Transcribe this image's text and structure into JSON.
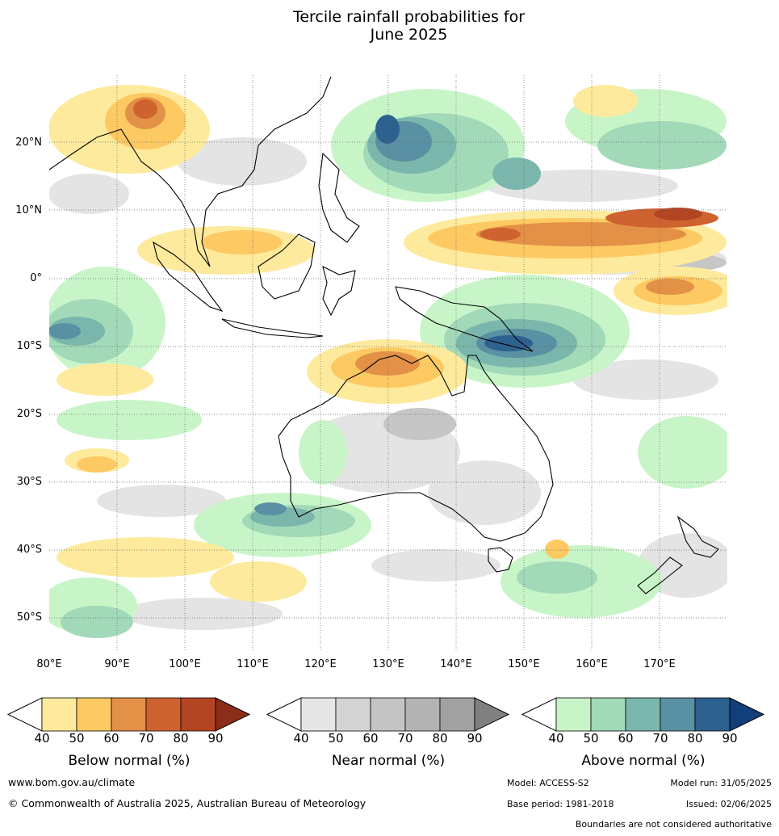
{
  "title": "Tercile rainfall probabilities for\nJune 2025",
  "lat_labels": [
    "20°N",
    "10°N",
    "0°",
    "10°S",
    "20°S",
    "30°S",
    "40°S",
    "50°S"
  ],
  "lon_labels": [
    "80°E",
    "90°E",
    "100°E",
    "110°E",
    "120°E",
    "130°E",
    "140°E",
    "150°E",
    "160°E",
    "170°E"
  ],
  "legend": {
    "below": {
      "caption": "Below normal (%)",
      "ticks": [
        "40",
        "50",
        "60",
        "70",
        "80",
        "90"
      ],
      "colors": [
        "#ffffff",
        "#feea9c",
        "#fdc963",
        "#e39147",
        "#cf6330",
        "#b34523",
        "#8c2d18"
      ]
    },
    "near": {
      "caption": "Near normal (%)",
      "ticks": [
        "40",
        "50",
        "60",
        "70",
        "80",
        "90"
      ],
      "colors": [
        "#ffffff",
        "#e6e6e6",
        "#d4d4d4",
        "#c4c4c4",
        "#b3b3b3",
        "#a1a1a1",
        "#808080"
      ]
    },
    "above": {
      "caption": "Above normal (%)",
      "ticks": [
        "40",
        "50",
        "60",
        "70",
        "80",
        "90"
      ],
      "colors": [
        "#ffffff",
        "#c8f5c8",
        "#a2d9b8",
        "#7ab6ab",
        "#5990a3",
        "#2d6190",
        "#123f7a"
      ]
    }
  },
  "footer": {
    "website": "www.bom.gov.au/climate",
    "copyright": "© Commonwealth of Australia 2025, Australian Bureau of Meteorology",
    "model": "Model: ACCESS-S2",
    "model_run": "Model run: 31/05/2025",
    "base_period": "Base period: 1981-2018",
    "issued": "Issued: 02/06/2025",
    "boundaries": "Boundaries are not considered authoritative"
  }
}
